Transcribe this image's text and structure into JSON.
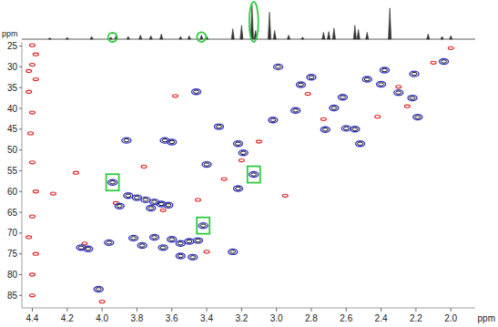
{
  "chart_data": {
    "type": "scatter",
    "x_label": "ppm",
    "y_label": "ppm",
    "xlim": [
      4.46,
      1.86
    ],
    "ylim": [
      24,
      88
    ],
    "xticks": [
      4.4,
      4.2,
      {
        "value": 4,
        "label": "4.0"
      },
      3.8,
      3.6,
      3.4,
      3.2,
      {
        "value": 3,
        "label": "3.0"
      },
      2.8,
      2.6,
      2.4,
      2.2,
      {
        "value": 2,
        "label": "2.0"
      }
    ],
    "yticks": [
      25,
      30,
      35,
      40,
      45,
      50,
      55,
      60,
      65,
      70,
      75,
      80,
      85
    ],
    "grid": false,
    "series": [
      {
        "color": "#3535c8",
        "marker": "contour",
        "x": [
          2.04,
          2.99,
          2.4,
          2.38,
          2.21,
          2.3,
          2.22,
          2.48,
          2.62,
          2.67,
          2.89,
          2.86,
          2.8,
          2.19,
          2.72,
          2.55,
          2.6,
          2.52,
          3.02,
          3.33,
          3.22,
          3.19,
          3.13,
          3.22,
          3.64,
          3.86,
          3.6,
          3.4,
          3.94,
          3.42,
          3.8,
          3.75,
          3.7,
          3.66,
          3.62,
          3.85,
          3.9,
          3.72,
          3.55,
          3.5,
          3.6,
          3.7,
          3.82,
          3.77,
          3.45,
          3.65,
          4.12,
          4.08,
          3.96,
          3.25,
          3.48,
          3.55,
          4.02,
          3.46
        ],
        "values": [
          28.7,
          30.0,
          34.2,
          30.8,
          31.7,
          36.2,
          37.5,
          33.0,
          37.3,
          39.9,
          40.5,
          34.3,
          32.5,
          42.1,
          45.1,
          45.0,
          44.8,
          48.5,
          42.8,
          44.4,
          48.5,
          50.7,
          55.9,
          59.3,
          47.7,
          47.7,
          48.1,
          53.5,
          57.8,
          68.2,
          61.5,
          62.0,
          62.5,
          63.0,
          63.3,
          61.0,
          63.5,
          64.0,
          72.5,
          72.0,
          71.5,
          71.0,
          71.2,
          73.0,
          71.8,
          73.5,
          73.5,
          73.8,
          72.3,
          74.5,
          75.8,
          75.5,
          83.5,
          36.0
        ]
      },
      {
        "color": "#e02020",
        "marker": "dot",
        "x": [
          4.4,
          4.38,
          4.4,
          4.42,
          4.38,
          4.42,
          4.4,
          4.41,
          4.4,
          4.38,
          4.4,
          4.42,
          4.38,
          4.4,
          4.4,
          4.28,
          4.15,
          4.1,
          3.92,
          3.65,
          3.4,
          3.3,
          3.2,
          2.1,
          2.3,
          2.42,
          2.73,
          2.82,
          3.58,
          3.76,
          4.0,
          3.45,
          2.95,
          3.1,
          2.0,
          2.25
        ],
        "values": [
          24.8,
          27.0,
          29.5,
          31.0,
          33.0,
          36.0,
          41.0,
          46.0,
          53.0,
          60.0,
          66.0,
          71.0,
          75.0,
          80.0,
          85.0,
          60.5,
          55.5,
          72.5,
          62.8,
          64.5,
          74.5,
          57.0,
          52.5,
          29.0,
          34.8,
          42.0,
          42.6,
          36.5,
          37.0,
          54.0,
          86.5,
          62.0,
          61.0,
          48.0,
          25.5,
          39.5
        ]
      }
    ],
    "projection": {
      "color": "#333333",
      "ylim": [
        0,
        100
      ],
      "x": [
        4.3,
        4.2,
        4.06,
        3.95,
        3.92,
        3.85,
        3.78,
        3.72,
        3.66,
        3.55,
        3.5,
        3.43,
        3.4,
        3.25,
        3.2,
        3.14,
        3.12,
        3.04,
        3.01,
        2.93,
        2.85,
        2.73,
        2.7,
        2.67,
        2.55,
        2.53,
        2.48,
        2.35,
        2.13,
        2.05,
        2.0
      ],
      "values": [
        4,
        5,
        8,
        6,
        10,
        8,
        12,
        10,
        15,
        8,
        10,
        12,
        8,
        30,
        40,
        100,
        25,
        78,
        25,
        12,
        6,
        20,
        22,
        32,
        40,
        28,
        20,
        90,
        15,
        8,
        10
      ]
    },
    "trace_highlights": {
      "color": "#2ecc40",
      "marker": "ellipse",
      "x": [
        3.94,
        3.43,
        3.13
      ]
    },
    "peak_highlights": {
      "color": "#2ecc40",
      "marker": "square",
      "x": [
        3.94,
        3.13,
        3.42
      ],
      "y": [
        57.8,
        55.9,
        68.2
      ]
    }
  }
}
